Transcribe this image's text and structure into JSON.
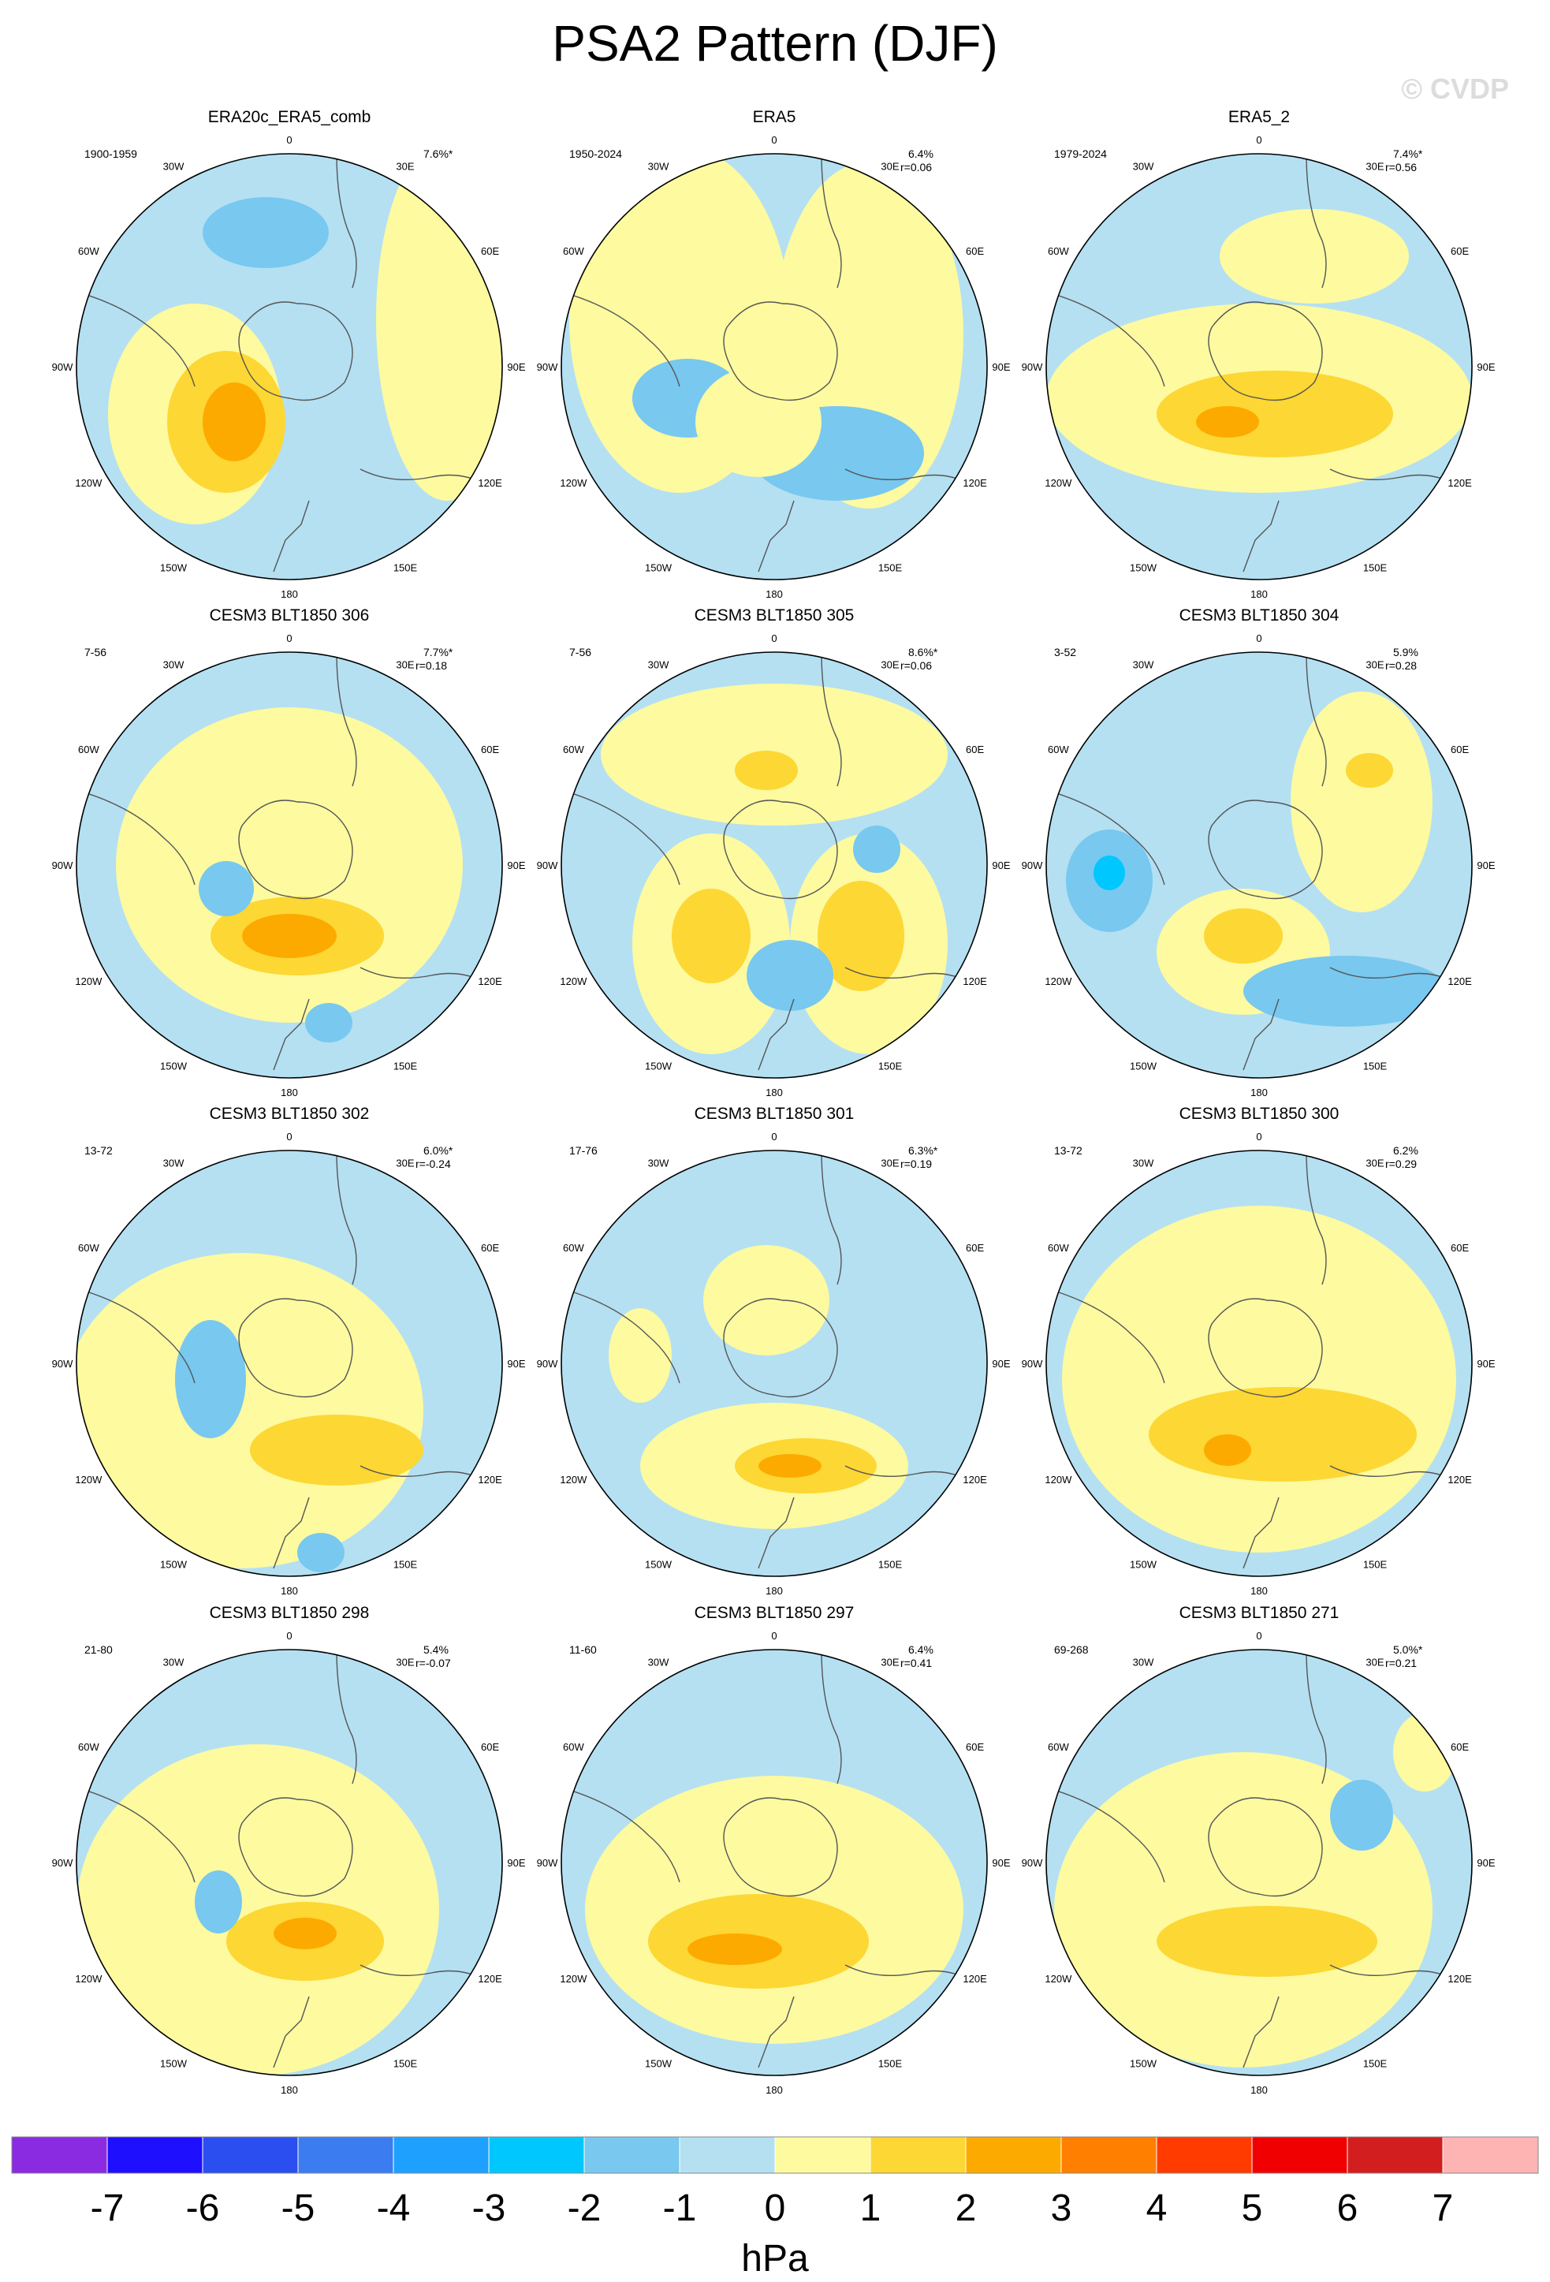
{
  "title": "PSA2 Pattern (DJF)",
  "watermark": "© CVDP",
  "unit": "hPa",
  "colorbar": {
    "colors": [
      "#8a2be2",
      "#1e0fff",
      "#2b4ef0",
      "#3b7cf0",
      "#1ea0ff",
      "#00c8ff",
      "#78c8f0",
      "#b4e0f2",
      "#fdfaa0",
      "#fdd733",
      "#fdaa00",
      "#ff7f00",
      "#ff3b00",
      "#f00000",
      "#d21e1e",
      "#ffb4b4"
    ],
    "ticks": [
      "-7",
      "-6",
      "-5",
      "-4",
      "-3",
      "-2",
      "-1",
      "0",
      "1",
      "2",
      "3",
      "4",
      "5",
      "6",
      "7"
    ]
  },
  "colors": {
    "neg1": "#b4e0f2",
    "neg2": "#78c8f0",
    "neg3": "#00c8ff",
    "pos1": "#fdfaa0",
    "pos2": "#fdd733",
    "pos3": "#fdaa00",
    "coast": "#555555"
  },
  "lon_labels": [
    "0",
    "30E",
    "60E",
    "90E",
    "120E",
    "150E",
    "180",
    "150W",
    "120W",
    "90W",
    "60W",
    "30W"
  ],
  "panels": [
    {
      "title": "ERA20c_ERA5_comb",
      "years": "1900-1959",
      "pct": "7.6%*",
      "r": ""
    },
    {
      "title": "ERA5",
      "years": "1950-2024",
      "pct": "6.4%",
      "r": "r=0.06"
    },
    {
      "title": "ERA5_2",
      "years": "1979-2024",
      "pct": "7.4%*",
      "r": "r=0.56"
    },
    {
      "title": "CESM3 BLT1850 306",
      "years": "7-56",
      "pct": "7.7%*",
      "r": "r=0.18"
    },
    {
      "title": "CESM3 BLT1850 305",
      "years": "7-56",
      "pct": "8.6%*",
      "r": "r=0.06"
    },
    {
      "title": "CESM3 BLT1850 304",
      "years": "3-52",
      "pct": "5.9%",
      "r": "r=0.28"
    },
    {
      "title": "CESM3 BLT1850 302",
      "years": "13-72",
      "pct": "6.0%*",
      "r": "r=-0.24"
    },
    {
      "title": "CESM3 BLT1850 301",
      "years": "17-76",
      "pct": "6.3%*",
      "r": "r=0.19"
    },
    {
      "title": "CESM3 BLT1850 300",
      "years": "13-72",
      "pct": "6.2%",
      "r": "r=0.29"
    },
    {
      "title": "CESM3 BLT1850 298",
      "years": "21-80",
      "pct": "5.4%",
      "r": "r=-0.07"
    },
    {
      "title": "CESM3 BLT1850 297",
      "years": "11-60",
      "pct": "6.4%",
      "r": "r=0.41"
    },
    {
      "title": "CESM3 BLT1850 271",
      "years": "69-268",
      "pct": "5.0%*",
      "r": "r=0.21"
    }
  ]
}
